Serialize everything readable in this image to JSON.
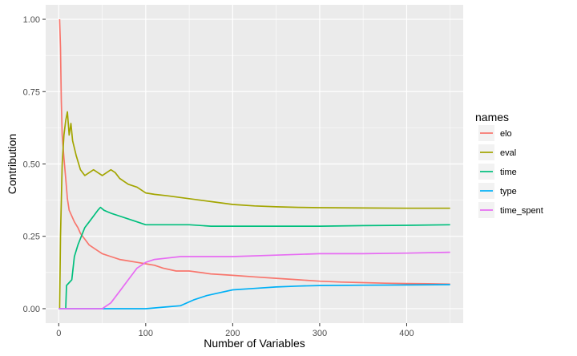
{
  "chart_data": {
    "type": "line",
    "title": "",
    "xlabel": "Number of Variables",
    "ylabel": "Contribution",
    "xlim": [
      -15,
      465
    ],
    "ylim": [
      -0.05,
      1.05
    ],
    "xticks": [
      0,
      100,
      200,
      300,
      400
    ],
    "xticks_minor": [
      50,
      150,
      250,
      350,
      450
    ],
    "yticks": [
      0,
      0.25,
      0.5,
      0.75,
      1
    ],
    "ytick_labels": [
      "0.00",
      "0.25",
      "0.50",
      "0.75",
      "1.00"
    ],
    "grid": true,
    "legend": {
      "title": "names",
      "position": "right"
    },
    "series": [
      {
        "name": "elo",
        "color": "#F8766D",
        "points": [
          [
            1,
            1.0
          ],
          [
            2,
            0.9
          ],
          [
            3,
            0.72
          ],
          [
            4,
            0.6
          ],
          [
            6,
            0.52
          ],
          [
            8,
            0.45
          ],
          [
            10,
            0.38
          ],
          [
            12,
            0.34
          ],
          [
            15,
            0.32
          ],
          [
            18,
            0.3
          ],
          [
            22,
            0.28
          ],
          [
            25,
            0.26
          ],
          [
            30,
            0.24
          ],
          [
            35,
            0.22
          ],
          [
            40,
            0.21
          ],
          [
            45,
            0.2
          ],
          [
            50,
            0.19
          ],
          [
            60,
            0.18
          ],
          [
            70,
            0.17
          ],
          [
            80,
            0.165
          ],
          [
            90,
            0.16
          ],
          [
            100,
            0.155
          ],
          [
            110,
            0.15
          ],
          [
            120,
            0.14
          ],
          [
            135,
            0.13
          ],
          [
            150,
            0.13
          ],
          [
            175,
            0.12
          ],
          [
            200,
            0.115
          ],
          [
            225,
            0.11
          ],
          [
            250,
            0.105
          ],
          [
            275,
            0.1
          ],
          [
            300,
            0.095
          ],
          [
            325,
            0.092
          ],
          [
            350,
            0.09
          ],
          [
            375,
            0.088
          ],
          [
            400,
            0.087
          ],
          [
            425,
            0.086
          ],
          [
            450,
            0.085
          ]
        ]
      },
      {
        "name": "eval",
        "color": "#A3A500",
        "points": [
          [
            1,
            0.0
          ],
          [
            2,
            0.25
          ],
          [
            4,
            0.5
          ],
          [
            6,
            0.6
          ],
          [
            8,
            0.65
          ],
          [
            10,
            0.68
          ],
          [
            12,
            0.6
          ],
          [
            14,
            0.64
          ],
          [
            16,
            0.58
          ],
          [
            20,
            0.53
          ],
          [
            25,
            0.48
          ],
          [
            30,
            0.46
          ],
          [
            35,
            0.47
          ],
          [
            40,
            0.48
          ],
          [
            45,
            0.47
          ],
          [
            50,
            0.46
          ],
          [
            55,
            0.47
          ],
          [
            60,
            0.48
          ],
          [
            65,
            0.47
          ],
          [
            70,
            0.45
          ],
          [
            75,
            0.44
          ],
          [
            80,
            0.43
          ],
          [
            90,
            0.42
          ],
          [
            100,
            0.4
          ],
          [
            110,
            0.395
          ],
          [
            125,
            0.39
          ],
          [
            150,
            0.38
          ],
          [
            175,
            0.37
          ],
          [
            200,
            0.36
          ],
          [
            225,
            0.355
          ],
          [
            250,
            0.352
          ],
          [
            275,
            0.35
          ],
          [
            300,
            0.349
          ],
          [
            350,
            0.348
          ],
          [
            400,
            0.347
          ],
          [
            450,
            0.347
          ]
        ]
      },
      {
        "name": "time",
        "color": "#00BF7D",
        "points": [
          [
            8,
            0.0
          ],
          [
            9,
            0.08
          ],
          [
            12,
            0.09
          ],
          [
            15,
            0.1
          ],
          [
            18,
            0.18
          ],
          [
            22,
            0.22
          ],
          [
            26,
            0.25
          ],
          [
            30,
            0.28
          ],
          [
            35,
            0.3
          ],
          [
            40,
            0.32
          ],
          [
            45,
            0.34
          ],
          [
            48,
            0.35
          ],
          [
            52,
            0.34
          ],
          [
            56,
            0.335
          ],
          [
            60,
            0.33
          ],
          [
            70,
            0.32
          ],
          [
            80,
            0.31
          ],
          [
            90,
            0.3
          ],
          [
            100,
            0.29
          ],
          [
            125,
            0.29
          ],
          [
            150,
            0.29
          ],
          [
            175,
            0.285
          ],
          [
            200,
            0.285
          ],
          [
            250,
            0.285
          ],
          [
            300,
            0.285
          ],
          [
            350,
            0.287
          ],
          [
            400,
            0.288
          ],
          [
            450,
            0.29
          ]
        ]
      },
      {
        "name": "type",
        "color": "#00B0F6",
        "points": [
          [
            0,
            0.0
          ],
          [
            100,
            0.0
          ],
          [
            120,
            0.005
          ],
          [
            140,
            0.01
          ],
          [
            155,
            0.03
          ],
          [
            170,
            0.045
          ],
          [
            185,
            0.055
          ],
          [
            200,
            0.065
          ],
          [
            225,
            0.07
          ],
          [
            250,
            0.075
          ],
          [
            275,
            0.078
          ],
          [
            300,
            0.08
          ],
          [
            350,
            0.081
          ],
          [
            400,
            0.082
          ],
          [
            450,
            0.083
          ]
        ]
      },
      {
        "name": "time_spent",
        "color": "#E76BF3",
        "points": [
          [
            0,
            0.0
          ],
          [
            50,
            0.0
          ],
          [
            60,
            0.02
          ],
          [
            70,
            0.06
          ],
          [
            80,
            0.1
          ],
          [
            90,
            0.14
          ],
          [
            100,
            0.16
          ],
          [
            110,
            0.17
          ],
          [
            125,
            0.175
          ],
          [
            140,
            0.18
          ],
          [
            150,
            0.18
          ],
          [
            175,
            0.18
          ],
          [
            200,
            0.18
          ],
          [
            250,
            0.185
          ],
          [
            300,
            0.19
          ],
          [
            350,
            0.19
          ],
          [
            400,
            0.192
          ],
          [
            450,
            0.195
          ]
        ]
      }
    ]
  }
}
